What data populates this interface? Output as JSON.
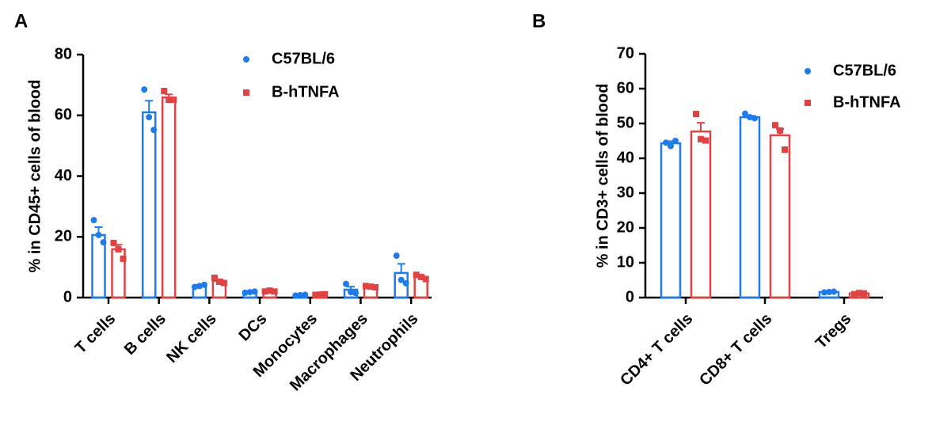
{
  "chart_data": [
    {
      "type": "bar",
      "panel": "A",
      "ylabel": "% in CD45+ cells of blood",
      "categories": [
        "T cells",
        "B cells",
        "NK cells",
        "DCs",
        "Monocytes",
        "Macrophages",
        "Neutrophils"
      ],
      "ylim": [
        0,
        80
      ],
      "yticks": [
        0,
        20,
        40,
        60,
        80
      ],
      "series": [
        {
          "name": "C57BL/6",
          "color": "#1e7bea",
          "marker": "circle",
          "values": [
            20.6,
            61,
            3.9,
            1.8,
            0.8,
            2.6,
            8.1
          ],
          "errors": [
            2.6,
            3.8,
            0.3,
            0.2,
            0.1,
            1.0,
            3.0
          ],
          "points": [
            [
              25.5,
              20.6,
              18.2
            ],
            [
              68.5,
              59.4,
              55.2
            ],
            [
              3.5,
              3.8,
              4.2
            ],
            [
              1.6,
              1.8,
              2.0
            ],
            [
              0.7,
              0.8,
              0.9
            ],
            [
              4.5,
              1.8,
              1.5
            ],
            [
              13.8,
              5.8,
              4.7
            ]
          ]
        },
        {
          "name": "B-hTNFA",
          "color": "#e04343",
          "marker": "square",
          "values": [
            15.9,
            65.9,
            5.5,
            2.1,
            1.0,
            3.6,
            6.8
          ],
          "errors": [
            1.5,
            1.0,
            0.5,
            0.1,
            0.1,
            0.1,
            0.4
          ],
          "points": [
            [
              18,
              15.9,
              12.8
            ],
            [
              68,
              65.1,
              65.1
            ],
            [
              6.5,
              5.2,
              4.8
            ],
            [
              2.0,
              2.3,
              2.0
            ],
            [
              0.9,
              1.0,
              1.1
            ],
            [
              3.8,
              3.6,
              3.4
            ],
            [
              7.5,
              6.8,
              6.1
            ]
          ]
        }
      ]
    },
    {
      "type": "bar",
      "panel": "B",
      "ylabel": "% in CD3+ cells of blood",
      "categories": [
        "CD4+ T cells",
        "CD8+ T cells",
        "Tregs"
      ],
      "ylim": [
        0,
        70
      ],
      "yticks": [
        0,
        10,
        20,
        30,
        40,
        50,
        60,
        70
      ],
      "series": [
        {
          "name": "C57BL/6",
          "color": "#1e7bea",
          "marker": "circle",
          "values": [
            44.3,
            51.8,
            1.6
          ],
          "errors": [
            0.6,
            0.4,
            0.2
          ],
          "points": [
            [
              44.5,
              43.5,
              45
            ],
            [
              52.8,
              51.8,
              51.5
            ],
            [
              1.5,
              1.6,
              1.7
            ]
          ]
        },
        {
          "name": "B-hTNFA",
          "color": "#e04343",
          "marker": "square",
          "values": [
            47.7,
            46.6,
            1.2
          ],
          "errors": [
            2.5,
            1.8,
            0.2
          ],
          "points": [
            [
              52.7,
              45.5,
              45.1
            ],
            [
              49.5,
              48,
              42.5
            ],
            [
              1.0,
              1.3,
              1.2
            ]
          ]
        }
      ]
    }
  ]
}
